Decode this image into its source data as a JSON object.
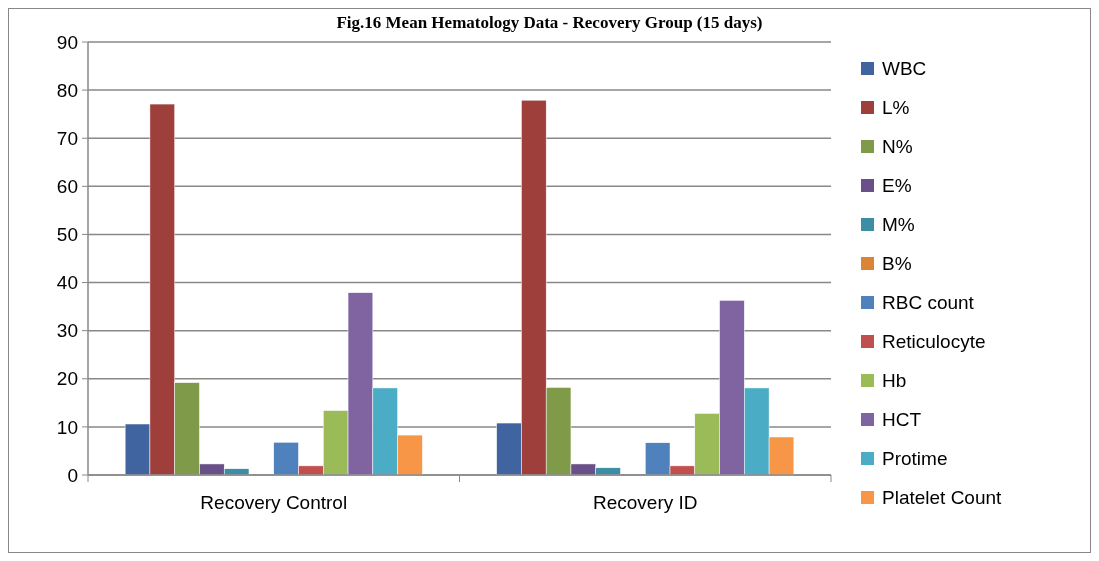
{
  "chart_data": {
    "type": "bar",
    "title": "Fig.16 Mean Hematology Data - Recovery Group (15 days)",
    "categories": [
      "Recovery Control",
      "Recovery ID"
    ],
    "series": [
      {
        "name": "WBC",
        "color": "#4064a0",
        "values": [
          10.6,
          10.8
        ]
      },
      {
        "name": "L%",
        "color": "#9e3f3c",
        "values": [
          77.1,
          77.9
        ]
      },
      {
        "name": "N%",
        "color": "#7f9a48",
        "values": [
          19.2,
          18.2
        ]
      },
      {
        "name": "E%",
        "color": "#6a5088",
        "values": [
          2.3,
          2.3
        ]
      },
      {
        "name": "M%",
        "color": "#3b8ea5",
        "values": [
          1.3,
          1.5
        ]
      },
      {
        "name": "B%",
        "color": "#db8434",
        "values": [
          0,
          0
        ]
      },
      {
        "name": "RBC count",
        "color": "#4f81bd",
        "values": [
          6.8,
          6.7
        ]
      },
      {
        "name": "Reticulocyte",
        "color": "#c0504d",
        "values": [
          1.9,
          1.9
        ]
      },
      {
        "name": "Hb",
        "color": "#9bbb59",
        "values": [
          13.4,
          12.8
        ]
      },
      {
        "name": "HCT",
        "color": "#8064a2",
        "values": [
          37.9,
          36.3
        ]
      },
      {
        "name": "Protime",
        "color": "#4bacc6",
        "values": [
          18.1,
          18.1
        ]
      },
      {
        "name": "Platelet Count",
        "color": "#f79646",
        "values": [
          8.3,
          7.9
        ]
      }
    ],
    "ylim": [
      0,
      90
    ],
    "yticks": [
      0,
      10,
      20,
      30,
      40,
      50,
      60,
      70,
      80,
      90
    ],
    "grid": "y",
    "legend": "right"
  }
}
